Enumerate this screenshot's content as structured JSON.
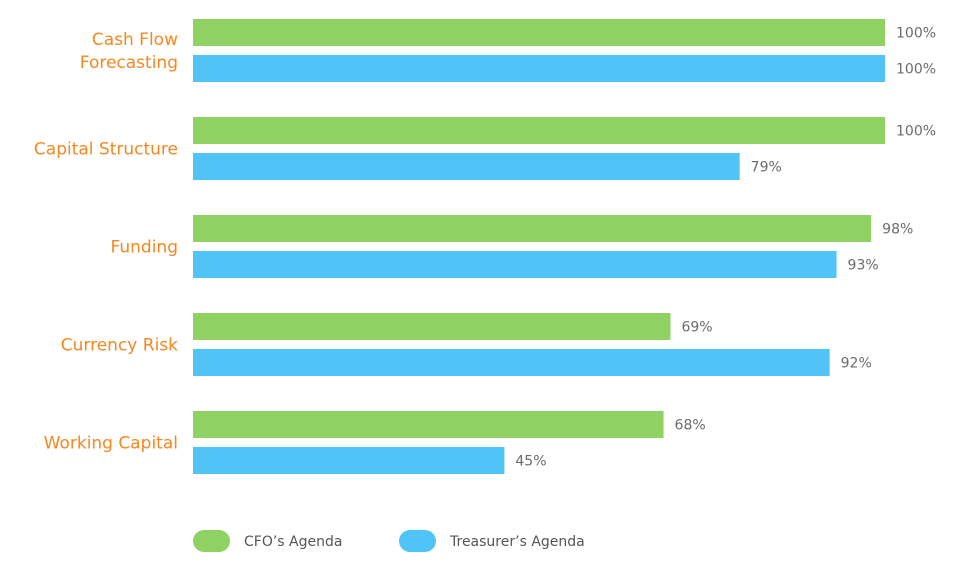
{
  "chart_data": {
    "type": "bar",
    "orientation": "horizontal",
    "categories": [
      [
        "Cash Flow",
        "Forecasting"
      ],
      [
        "Capital Structure"
      ],
      [
        "Funding"
      ],
      [
        "Currency Risk"
      ],
      [
        "Working Capital"
      ]
    ],
    "series": [
      {
        "name": "CFO’s Agenda",
        "color": "#8fd163",
        "values": [
          100,
          100,
          98,
          69,
          68
        ]
      },
      {
        "name": "Treasurer’s Agenda",
        "color": "#50c4f6",
        "values": [
          100,
          79,
          93,
          92,
          45
        ]
      }
    ],
    "value_format": "percent",
    "xlim": [
      0,
      100
    ],
    "grid": false,
    "legend_position": "bottom-left",
    "category_label_color": "#f7861f"
  }
}
